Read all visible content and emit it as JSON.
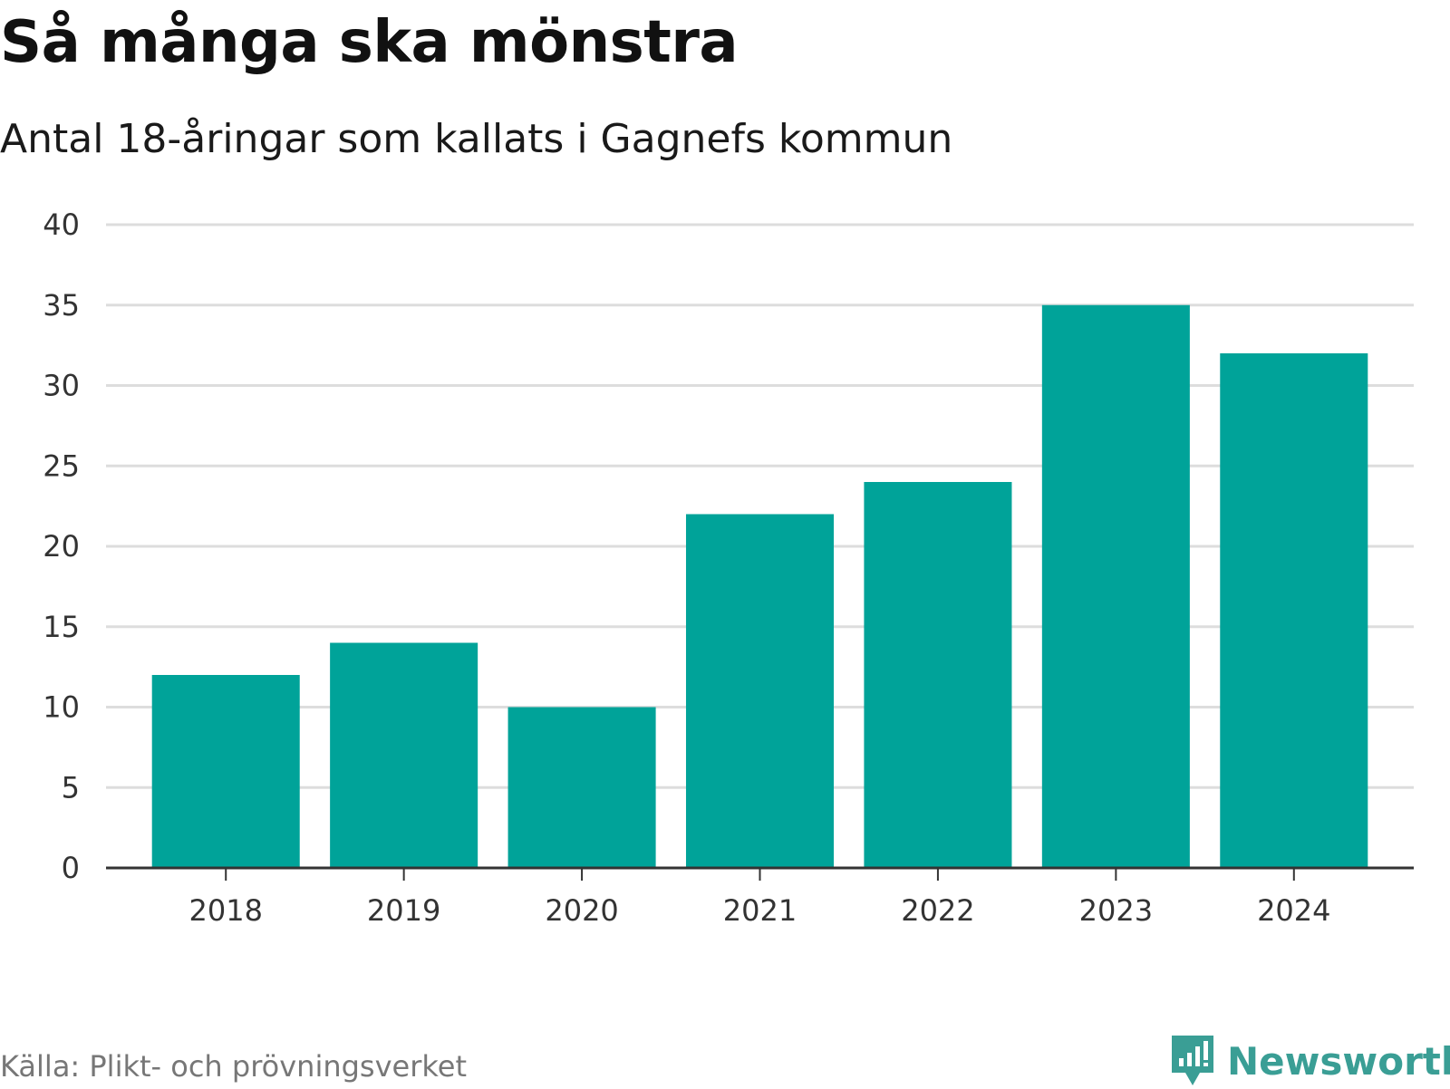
{
  "header": {
    "title": "Så många ska mönstra",
    "subtitle": "Antal 18-åringar som kallats i Gagnefs kommun"
  },
  "footer": {
    "source": "Källa: Plikt- och prövningsverket",
    "brand": "Newsworthy"
  },
  "colors": {
    "bar": "#00a399",
    "grid": "#dddddd",
    "axis": "#333333",
    "brand": "#3a9e95"
  },
  "chart_data": {
    "type": "bar",
    "title": "Så många ska mönstra",
    "subtitle": "Antal 18-åringar som kallats i Gagnefs kommun",
    "categories": [
      "2018",
      "2019",
      "2020",
      "2021",
      "2022",
      "2023",
      "2024"
    ],
    "values": [
      12,
      14,
      10,
      22,
      24,
      35,
      32
    ],
    "ylim": [
      0,
      40
    ],
    "yticks": [
      0,
      5,
      10,
      15,
      20,
      25,
      30,
      35,
      40
    ],
    "xlabel": "",
    "ylabel": "",
    "grid": true
  }
}
